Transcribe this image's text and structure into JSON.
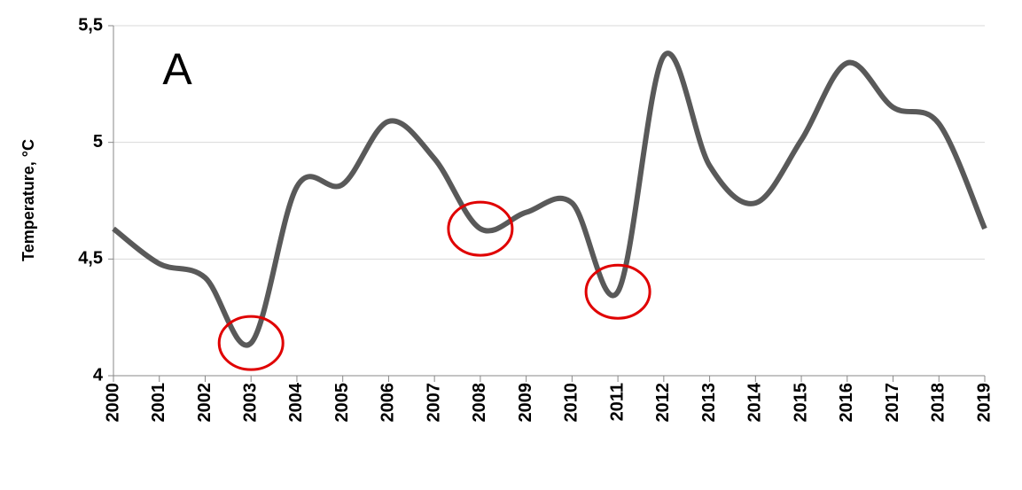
{
  "chart_data": {
    "type": "line",
    "annotation": "A",
    "y_label": "Temperature, °C",
    "categories": [
      "2000",
      "2001",
      "2002",
      "2003",
      "2004",
      "2005",
      "2006",
      "2007",
      "2008",
      "2009",
      "2010",
      "2011",
      "2012",
      "2013",
      "2014",
      "2015",
      "2016",
      "2017",
      "2018",
      "2019"
    ],
    "series": [
      {
        "name": "Temperature",
        "color": "#595959",
        "values": [
          4.63,
          4.48,
          4.42,
          4.14,
          4.81,
          4.82,
          5.09,
          4.93,
          4.63,
          4.7,
          4.74,
          4.36,
          5.37,
          4.9,
          4.74,
          5.01,
          5.34,
          5.15,
          5.08,
          4.63
        ]
      }
    ],
    "ylim": [
      4,
      5.5
    ],
    "yticks": [
      4,
      {
        "value": 4.5,
        "label": "4,5"
      },
      5,
      {
        "value": 5.5,
        "label": "5,5"
      }
    ],
    "grid": true,
    "highlights": [
      "2003",
      "2008",
      "2011"
    ],
    "highlight_color": "#e00000"
  }
}
